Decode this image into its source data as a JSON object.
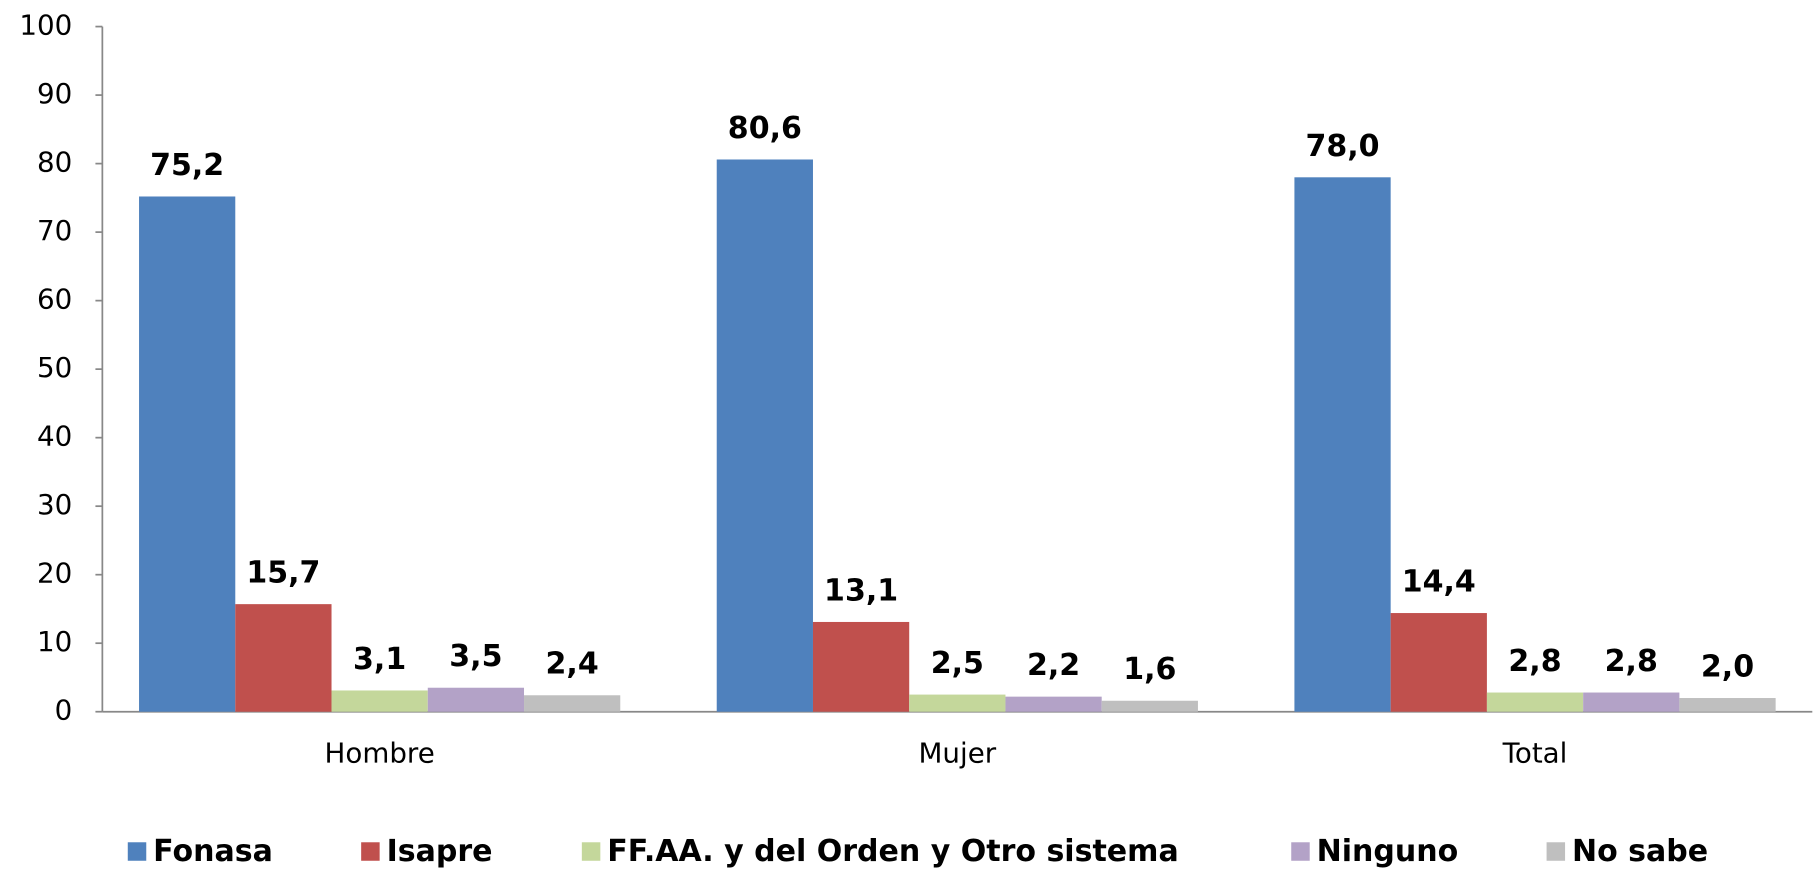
{
  "chart_data": {
    "type": "bar",
    "categories": [
      "Hombre",
      "Mujer",
      "Total"
    ],
    "series": [
      {
        "name": "Fonasa",
        "color": "#4f81bd",
        "values": [
          75.2,
          80.6,
          78.0
        ],
        "value_labels": [
          "75,2",
          "80,6",
          "78,0"
        ]
      },
      {
        "name": "Isapre",
        "color": "#c0504d",
        "values": [
          15.7,
          13.1,
          14.4
        ],
        "value_labels": [
          "15,7",
          "13,1",
          "14,4"
        ]
      },
      {
        "name": "FF.AA. y del Orden y Otro sistema",
        "color": "#c4d79b",
        "values": [
          3.1,
          2.5,
          2.8
        ],
        "value_labels": [
          "3,1",
          "2,5",
          "2,8"
        ]
      },
      {
        "name": "Ninguno",
        "color": "#b3a2c7",
        "values": [
          3.5,
          2.2,
          2.8
        ],
        "value_labels": [
          "3,5",
          "2,2",
          "2,8"
        ]
      },
      {
        "name": "No sabe",
        "color": "#bfbfbf",
        "values": [
          2.4,
          1.6,
          2.0
        ],
        "value_labels": [
          "2,4",
          "1,6",
          "2,0"
        ]
      }
    ],
    "ylim": [
      0,
      100
    ],
    "yticks": [
      0,
      10,
      20,
      30,
      40,
      50,
      60,
      70,
      80,
      90,
      100
    ],
    "legend": "bottom"
  }
}
